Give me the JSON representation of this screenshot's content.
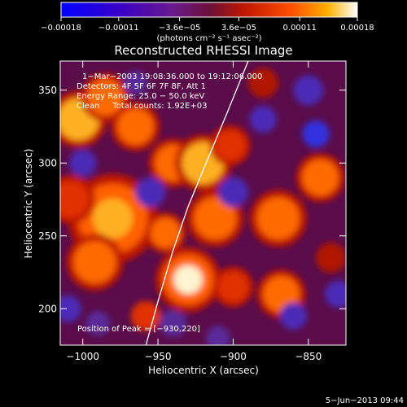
{
  "chart_data": {
    "type": "heatmap",
    "title": "Reconstructed RHESSI Image",
    "xlabel": "Heliocentric X (arcsec)",
    "ylabel": "Heliocentric Y (arcsec)",
    "xlim": [
      -1015,
      -825
    ],
    "ylim": [
      175,
      370
    ],
    "x_ticks": [
      {
        "value": -1000,
        "label": "−1000"
      },
      {
        "value": -950,
        "label": "−950"
      },
      {
        "value": -900,
        "label": "−900"
      },
      {
        "value": -850,
        "label": "−850"
      }
    ],
    "y_ticks": [
      {
        "value": 200,
        "label": "200"
      },
      {
        "value": 250,
        "label": "250"
      },
      {
        "value": 300,
        "label": "300"
      },
      {
        "value": 350,
        "label": "350"
      }
    ],
    "colorbar": {
      "range": [
        -0.00018,
        0.00018
      ],
      "ticks": [
        {
          "value": -0.00018,
          "label": "−0.00018"
        },
        {
          "value": -0.00011,
          "label": "−0.00011"
        },
        {
          "value": -3.6e-05,
          "label": "−3.6e−05"
        },
        {
          "value": 3.6e-05,
          "label": "3.6e−05"
        },
        {
          "value": 0.00011,
          "label": "0.00011"
        },
        {
          "value": 0.00018,
          "label": "0.00018"
        }
      ],
      "unit_label": "(photons cm⁻² s⁻¹ asec⁻²)"
    },
    "annotations": [
      "1−Mar−2003 19:08:36.000  to 19:12:06.000",
      "Detectors: 4F 5F 6F 7F 8F, Att 1",
      "Energy Range: 25.0 − 50.0 keV",
      "Clean     Total counts: 1.92E+03"
    ],
    "peak_label": "Position of Peak = [−930,220]",
    "peak": {
      "x": -930,
      "y": 220
    },
    "limb_curve": [
      [
        -958,
        175
      ],
      [
        -950,
        205
      ],
      [
        -940,
        240
      ],
      [
        -930,
        270
      ],
      [
        -918,
        300
      ],
      [
        -905,
        332
      ],
      [
        -890,
        370
      ]
    ],
    "blobs": [
      {
        "x": -930,
        "y": 220,
        "r": 16,
        "v": 1.0
      },
      {
        "x": -1003,
        "y": 330,
        "r": 14,
        "v": 0.8
      },
      {
        "x": -985,
        "y": 345,
        "r": 12,
        "v": 0.7
      },
      {
        "x": -965,
        "y": 325,
        "r": 12,
        "v": 0.75
      },
      {
        "x": -980,
        "y": 262,
        "r": 22,
        "v": 0.85
      },
      {
        "x": -992,
        "y": 232,
        "r": 14,
        "v": 0.7
      },
      {
        "x": -945,
        "y": 252,
        "r": 10,
        "v": 0.7
      },
      {
        "x": -940,
        "y": 300,
        "r": 12,
        "v": 0.65
      },
      {
        "x": -920,
        "y": 300,
        "r": 14,
        "v": 0.8
      },
      {
        "x": -912,
        "y": 262,
        "r": 14,
        "v": 0.75
      },
      {
        "x": -902,
        "y": 312,
        "r": 10,
        "v": 0.6
      },
      {
        "x": -870,
        "y": 262,
        "r": 14,
        "v": 0.75
      },
      {
        "x": -842,
        "y": 290,
        "r": 12,
        "v": 0.7
      },
      {
        "x": -868,
        "y": 210,
        "r": 12,
        "v": 0.65
      },
      {
        "x": -900,
        "y": 215,
        "r": 10,
        "v": 0.55
      },
      {
        "x": -1008,
        "y": 275,
        "r": 12,
        "v": 0.55
      },
      {
        "x": -958,
        "y": 195,
        "r": 10,
        "v": 0.5
      },
      {
        "x": -835,
        "y": 235,
        "r": 10,
        "v": 0.45
      },
      {
        "x": -880,
        "y": 355,
        "r": 10,
        "v": 0.4
      },
      {
        "x": -845,
        "y": 320,
        "r": 9,
        "v": -0.8
      },
      {
        "x": -880,
        "y": 330,
        "r": 9,
        "v": -0.7
      },
      {
        "x": -900,
        "y": 280,
        "r": 10,
        "v": -0.7
      },
      {
        "x": -955,
        "y": 280,
        "r": 10,
        "v": -0.6
      },
      {
        "x": -1000,
        "y": 300,
        "r": 9,
        "v": -0.6
      },
      {
        "x": -1010,
        "y": 200,
        "r": 9,
        "v": -0.6
      },
      {
        "x": -940,
        "y": 190,
        "r": 9,
        "v": -0.5
      },
      {
        "x": -860,
        "y": 195,
        "r": 9,
        "v": -0.6
      },
      {
        "x": -830,
        "y": 210,
        "r": 9,
        "v": -0.7
      },
      {
        "x": -965,
        "y": 355,
        "r": 8,
        "v": -0.5
      },
      {
        "x": -850,
        "y": 350,
        "r": 10,
        "v": -0.6
      },
      {
        "x": -910,
        "y": 180,
        "r": 8,
        "v": -0.5
      },
      {
        "x": -990,
        "y": 190,
        "r": 8,
        "v": -0.4
      }
    ]
  },
  "footer": {
    "date": "5−Jun−2013 09:44"
  }
}
